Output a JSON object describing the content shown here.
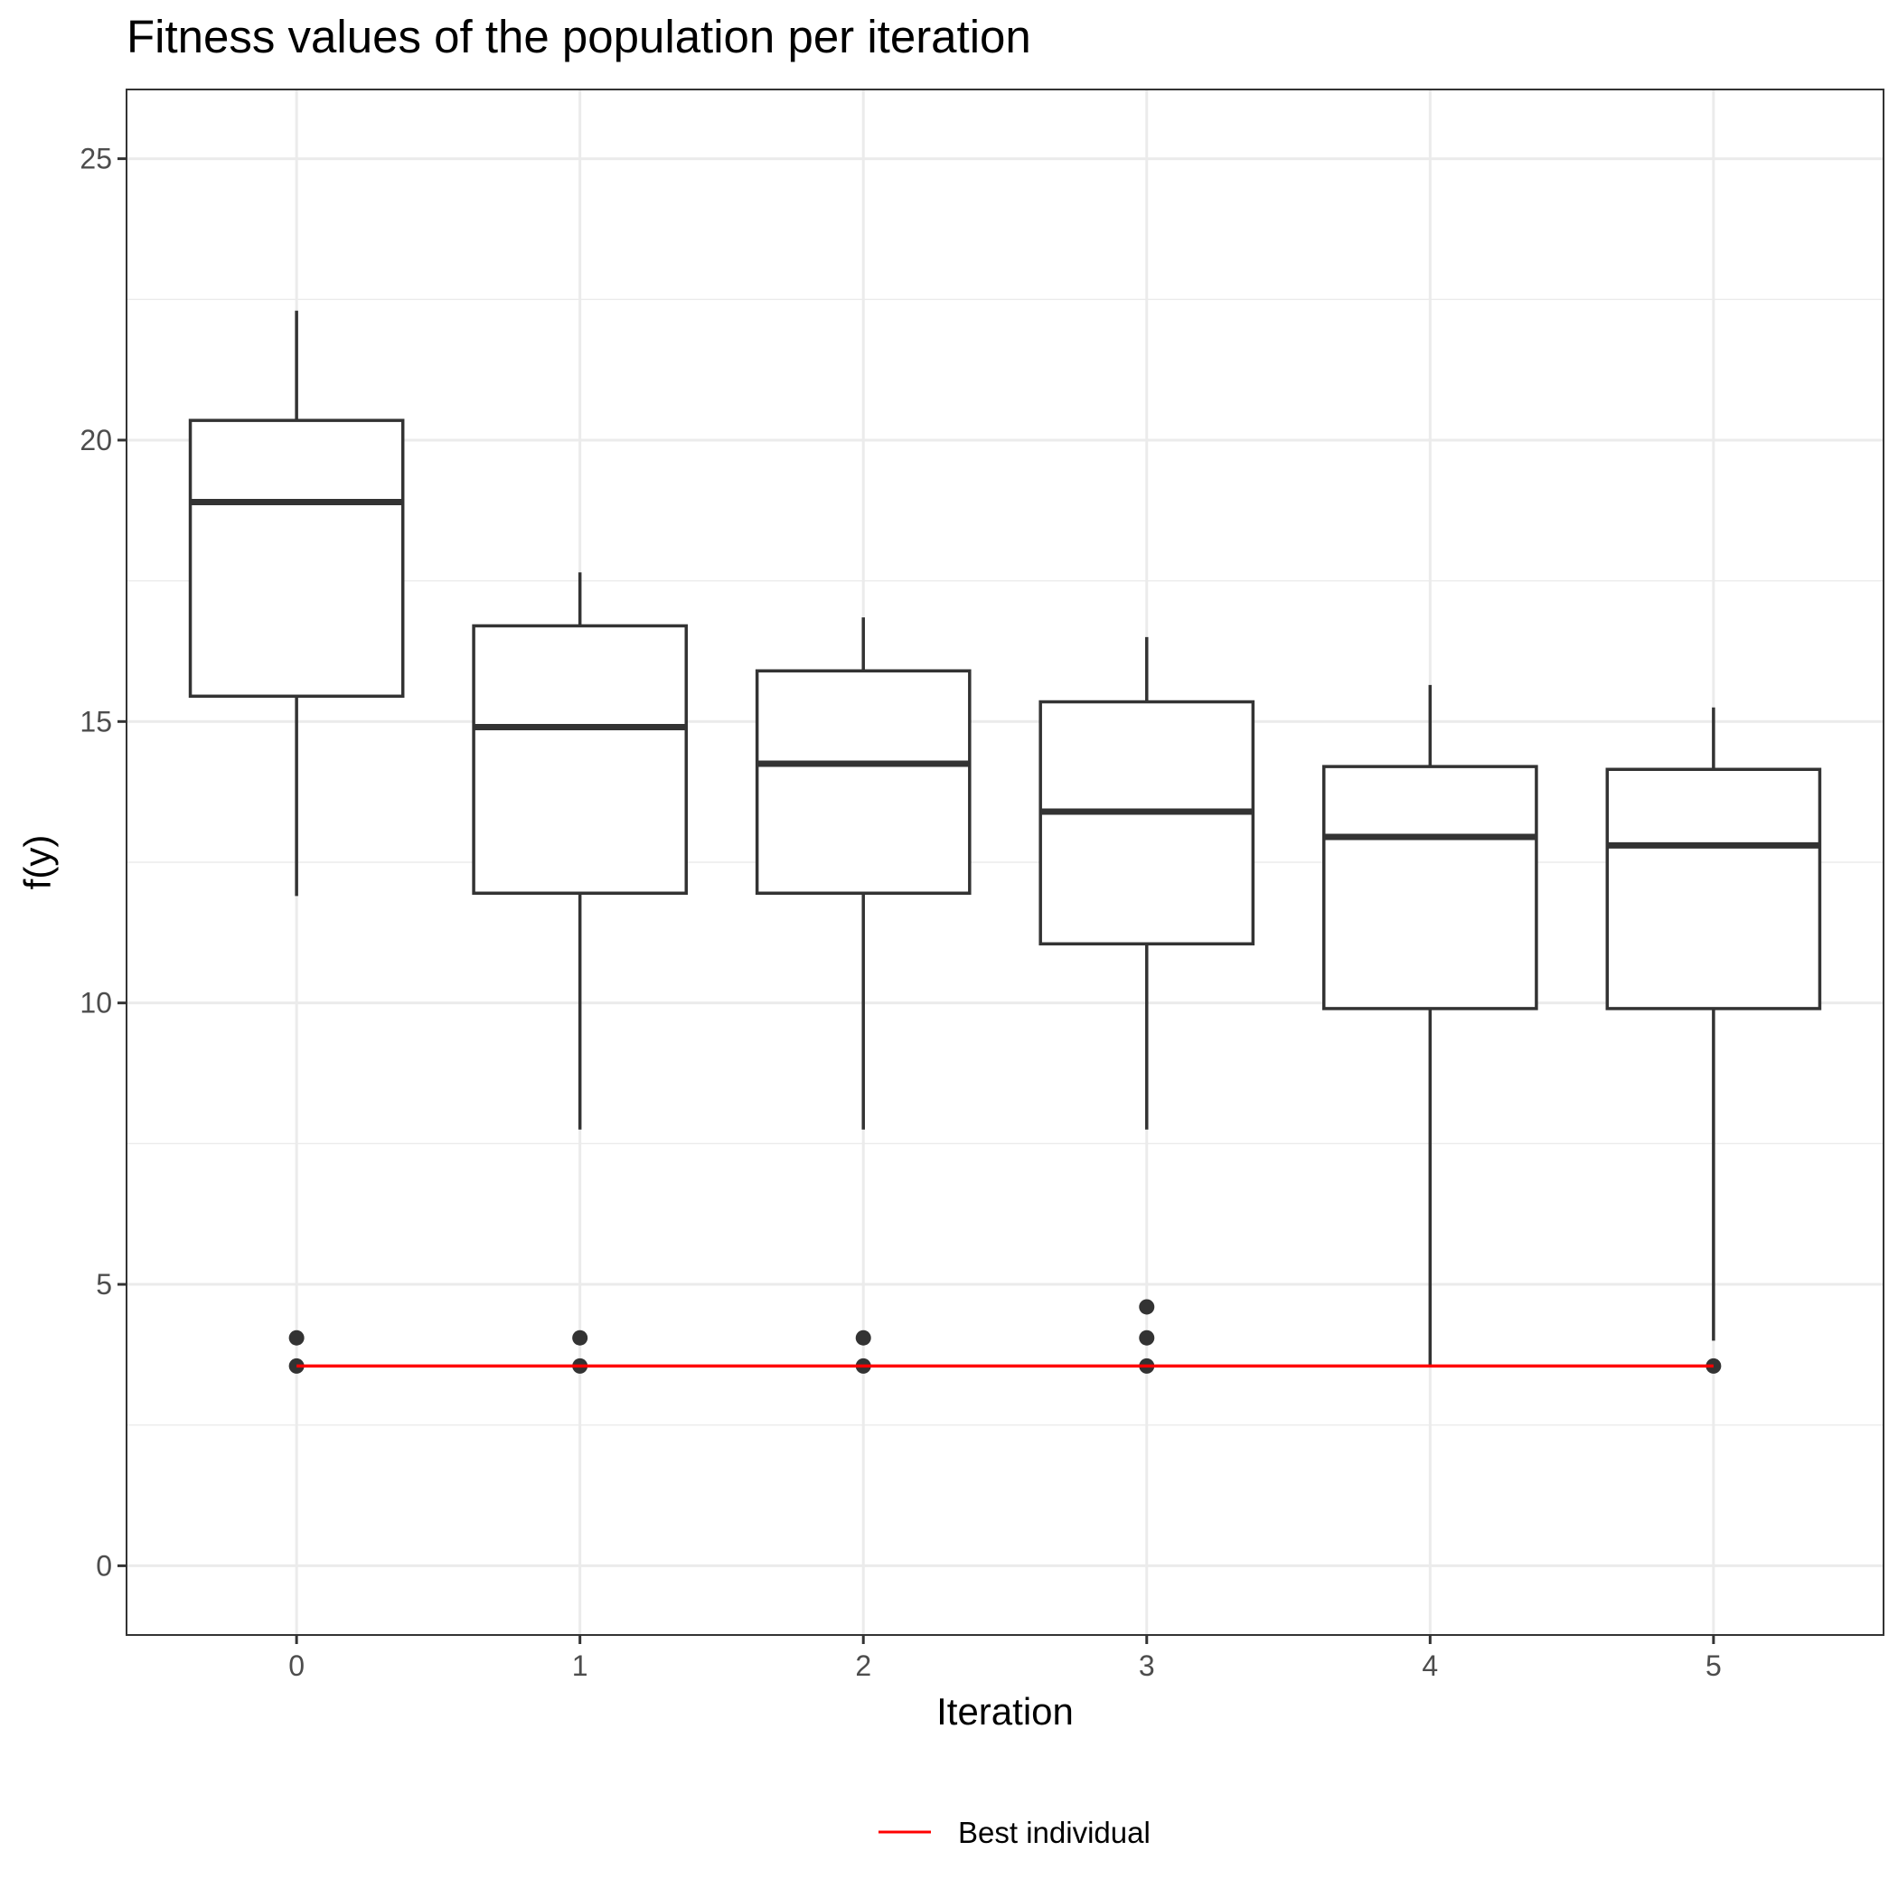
{
  "chart_data": {
    "type": "boxplot",
    "title": "Fitness values of the population per iteration",
    "xlabel": "Iteration",
    "ylabel": "f(y)",
    "categories": [
      "0",
      "1",
      "2",
      "3",
      "4",
      "5"
    ],
    "ylim": [
      -1.23,
      26.23
    ],
    "yticks": [
      0,
      5,
      10,
      15,
      20,
      25
    ],
    "grid": true,
    "legend_position": "bottom",
    "boxes": [
      {
        "category": "0",
        "whisker_low": 11.9,
        "q1": 15.45,
        "median": 18.9,
        "q3": 20.35,
        "whisker_high": 22.3,
        "outliers": [
          4.05,
          3.55
        ]
      },
      {
        "category": "1",
        "whisker_low": 7.75,
        "q1": 11.95,
        "median": 14.9,
        "q3": 16.7,
        "whisker_high": 17.65,
        "outliers": [
          4.05,
          3.55
        ]
      },
      {
        "category": "2",
        "whisker_low": 7.75,
        "q1": 11.95,
        "median": 14.25,
        "q3": 15.9,
        "whisker_high": 16.85,
        "outliers": [
          4.05,
          3.55
        ]
      },
      {
        "category": "3",
        "whisker_low": 7.75,
        "q1": 11.05,
        "median": 13.4,
        "q3": 15.35,
        "whisker_high": 16.5,
        "outliers": [
          4.6,
          4.05,
          3.55
        ]
      },
      {
        "category": "4",
        "whisker_low": 3.55,
        "q1": 9.9,
        "median": 12.95,
        "q3": 14.2,
        "whisker_high": 15.65,
        "outliers": []
      },
      {
        "category": "5",
        "whisker_low": 4.0,
        "q1": 9.9,
        "median": 12.8,
        "q3": 14.15,
        "whisker_high": 15.25,
        "outliers": [
          3.55
        ]
      }
    ],
    "series": [
      {
        "name": "Best individual",
        "type": "line",
        "color": "#ff0000",
        "x": [
          "0",
          "1",
          "2",
          "3",
          "4",
          "5"
        ],
        "values": [
          3.55,
          3.55,
          3.55,
          3.55,
          3.55,
          3.55
        ]
      }
    ],
    "colors": {
      "box": "#333333",
      "grid": "#ebebeb",
      "best_line": "#ff0000"
    }
  }
}
